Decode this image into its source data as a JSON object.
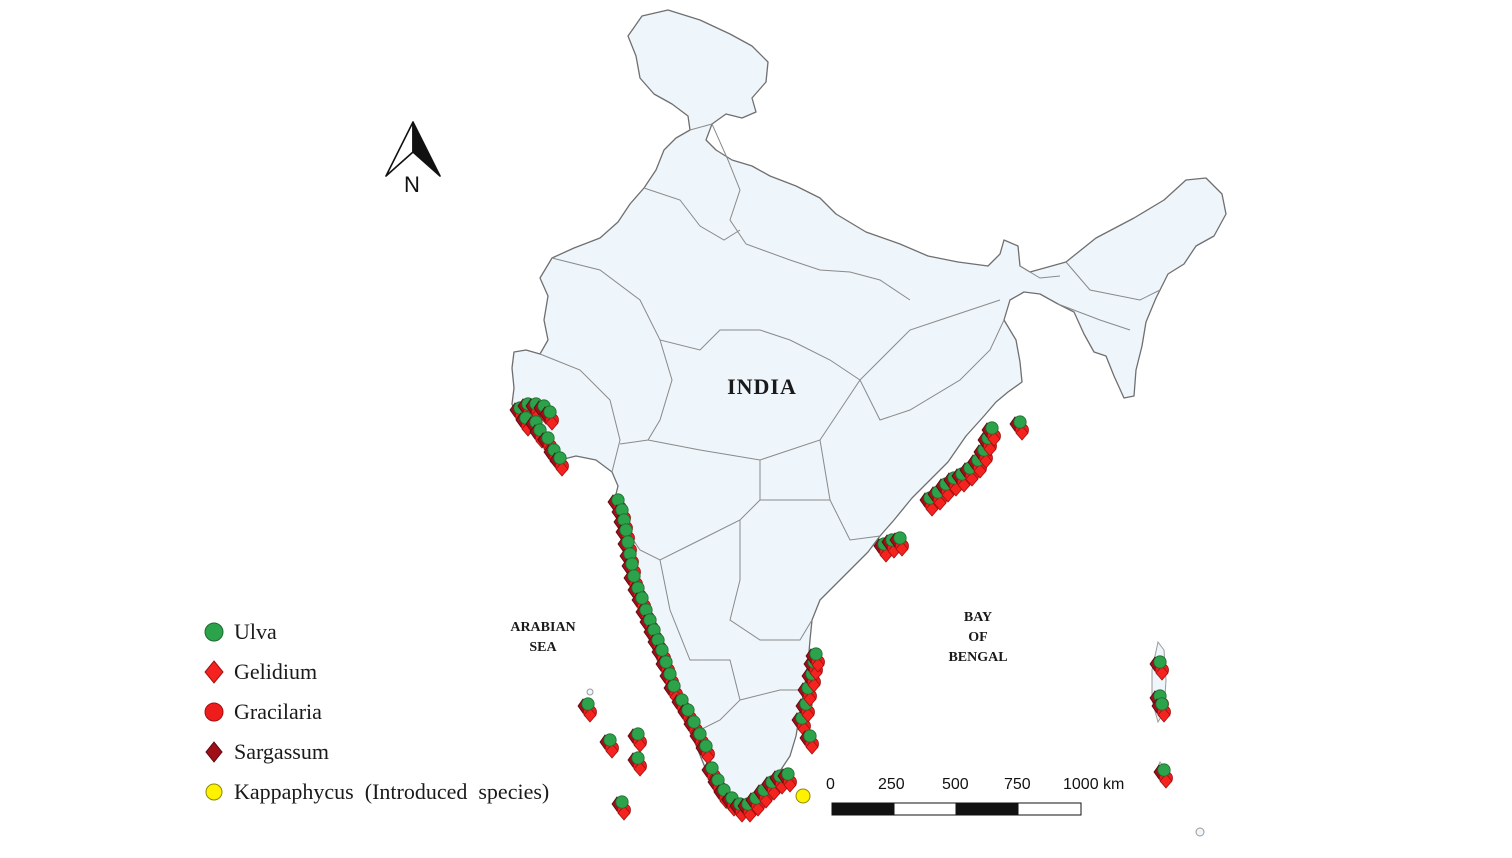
{
  "map": {
    "labels": {
      "country": "INDIA",
      "arabian_sea_line1": "ARABIAN",
      "arabian_sea_line2": "SEA",
      "bay_line1": "BAY",
      "bay_line2": "OF",
      "bay_line3": "BENGAL"
    },
    "north_arrow": {
      "icon": "north-arrow-icon",
      "label": "N"
    },
    "scale_bar": {
      "ticks": [
        "0",
        "250",
        "500",
        "750",
        "1000 km"
      ]
    },
    "colors": {
      "land": "#eef5fb",
      "border": "#6f6f6f",
      "ulva": "#2ca24a",
      "gelidium": "#f4231f",
      "gracilaria": "#ef1c1c",
      "sargassum": "#9e0f18",
      "kappaphycus": "#fff200"
    }
  },
  "legend": [
    {
      "key": "ulva",
      "label": "Ulva",
      "icon": "green-circle-icon"
    },
    {
      "key": "gelidium",
      "label": "Gelidium",
      "icon": "red-diamond-icon"
    },
    {
      "key": "gracilaria",
      "label": "Gracilaria",
      "icon": "red-circle-icon"
    },
    {
      "key": "sargassum",
      "label": "Sargassum",
      "icon": "dark-red-diamond-icon"
    },
    {
      "key": "kappaphycus",
      "label": "Kappaphycus  (Introduced  species)",
      "icon": "yellow-circle-icon"
    }
  ]
}
